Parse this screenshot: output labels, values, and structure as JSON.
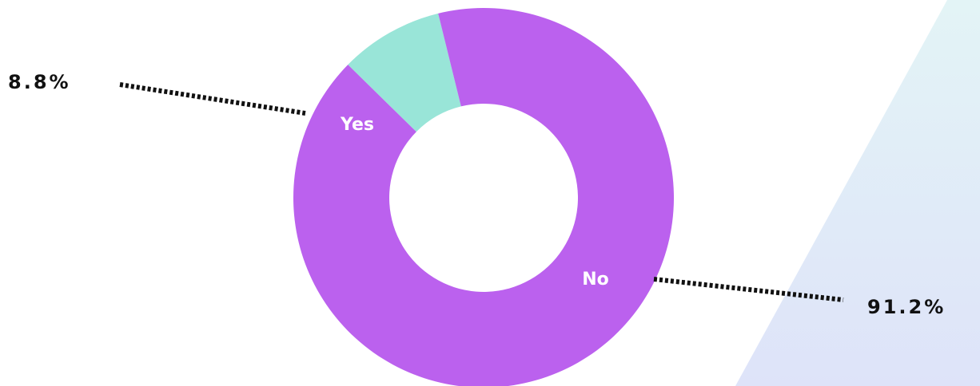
{
  "colors": {
    "no": "#BB61EE",
    "yes": "#99E5D8",
    "label_text": "#FFFFFF",
    "percent_text": "#111111",
    "background_gradient_top": "#E3F4F6",
    "background_gradient_bottom": "#DEE3F9"
  },
  "chart_data": {
    "type": "pie",
    "variant": "donut",
    "title": "",
    "slices": [
      {
        "label": "Yes",
        "value": 8.8,
        "percent_label": "8.8%",
        "color": "#99E5D8"
      },
      {
        "label": "No",
        "value": 91.2,
        "percent_label": "91.2%",
        "color": "#BB61EE"
      }
    ],
    "legend": "none",
    "leader_lines": "dotted"
  }
}
